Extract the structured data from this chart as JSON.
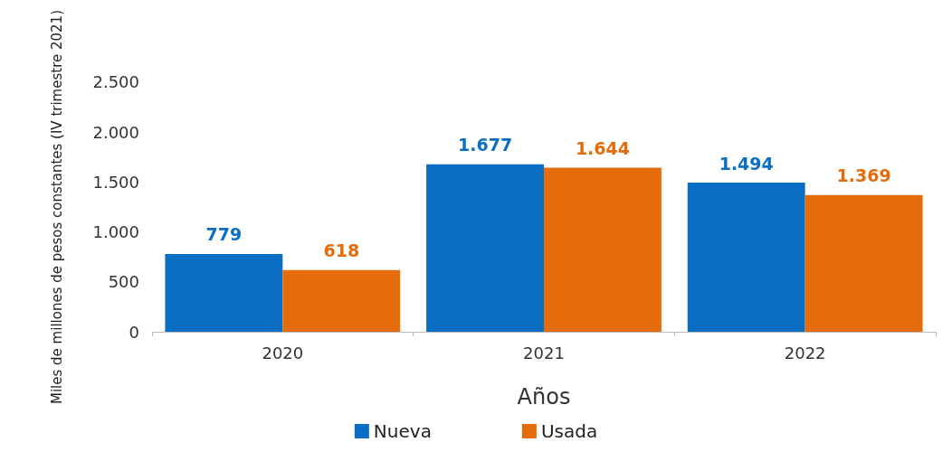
{
  "chart_data": {
    "type": "bar",
    "xlabel": "Años",
    "ylabel": "Miles de millones de pesos constantes (IV trimestre 2021)",
    "categories": [
      "2020",
      "2021",
      "2022"
    ],
    "series": [
      {
        "name": "Nueva",
        "color": "#0a6fc2",
        "values": [
          779,
          1677,
          1494
        ],
        "value_labels": [
          "779",
          "1.677",
          "1.494"
        ]
      },
      {
        "name": "Usada",
        "color": "#e46c0a",
        "values": [
          618,
          1644,
          1369
        ],
        "value_labels": [
          "618",
          "1.644",
          "1.369"
        ]
      }
    ],
    "ylim": [
      0,
      2500
    ],
    "yticks": [
      {
        "value": 0,
        "label": "0"
      },
      {
        "value": 500,
        "label": "500"
      },
      {
        "value": 1000,
        "label": "1.000"
      },
      {
        "value": 1500,
        "label": "1.500"
      },
      {
        "value": 2000,
        "label": "2.000"
      },
      {
        "value": 2500,
        "label": "2.500"
      }
    ],
    "grid": false,
    "legend": "bottom"
  }
}
